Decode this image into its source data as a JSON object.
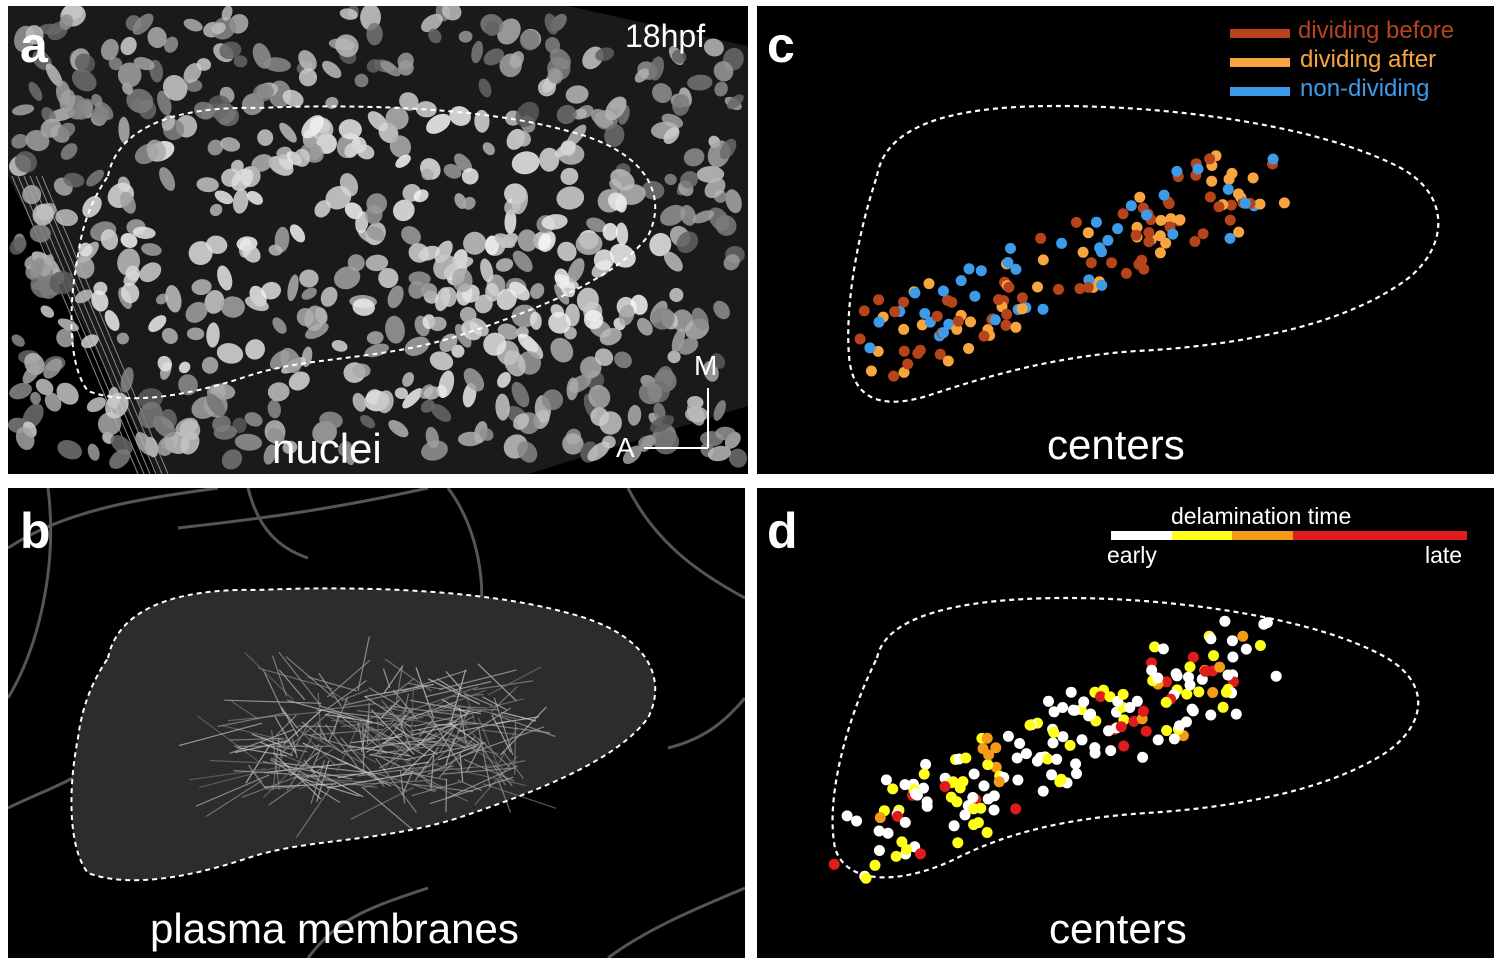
{
  "panels": {
    "a": {
      "label": "a",
      "timepoint": "18hpf",
      "caption": "nuclei",
      "axes": {
        "medial": "M",
        "anterior": "A"
      }
    },
    "b": {
      "label": "b",
      "caption": "plasma membranes"
    },
    "c": {
      "label": "c",
      "caption": "centers",
      "legend": [
        {
          "label": "dividing before",
          "color": "#b5441a"
        },
        {
          "label": "dividing after",
          "color": "#f7a63f"
        },
        {
          "label": "non-dividing",
          "color": "#3d9be9"
        }
      ]
    },
    "d": {
      "label": "d",
      "caption": "centers",
      "colorbar": {
        "title": "delamination time",
        "start_label": "early",
        "end_label": "late",
        "segments": [
          {
            "color": "#ffffff",
            "span": 0.17
          },
          {
            "color": "#ffff1a",
            "span": 0.17
          },
          {
            "color": "#f39a16",
            "span": 0.17
          },
          {
            "color": "#e01b1b",
            "span": 0.49
          }
        ]
      }
    }
  },
  "colors": {
    "background": "#000000",
    "outline": "#ffffff",
    "dividing_before": "#b5441a",
    "dividing_after": "#f7a63f",
    "non_dividing": "#3d9be9",
    "early": "#ffffff",
    "mid_early": "#ffff1a",
    "mid_late": "#f39a16",
    "late": "#e01b1b"
  }
}
